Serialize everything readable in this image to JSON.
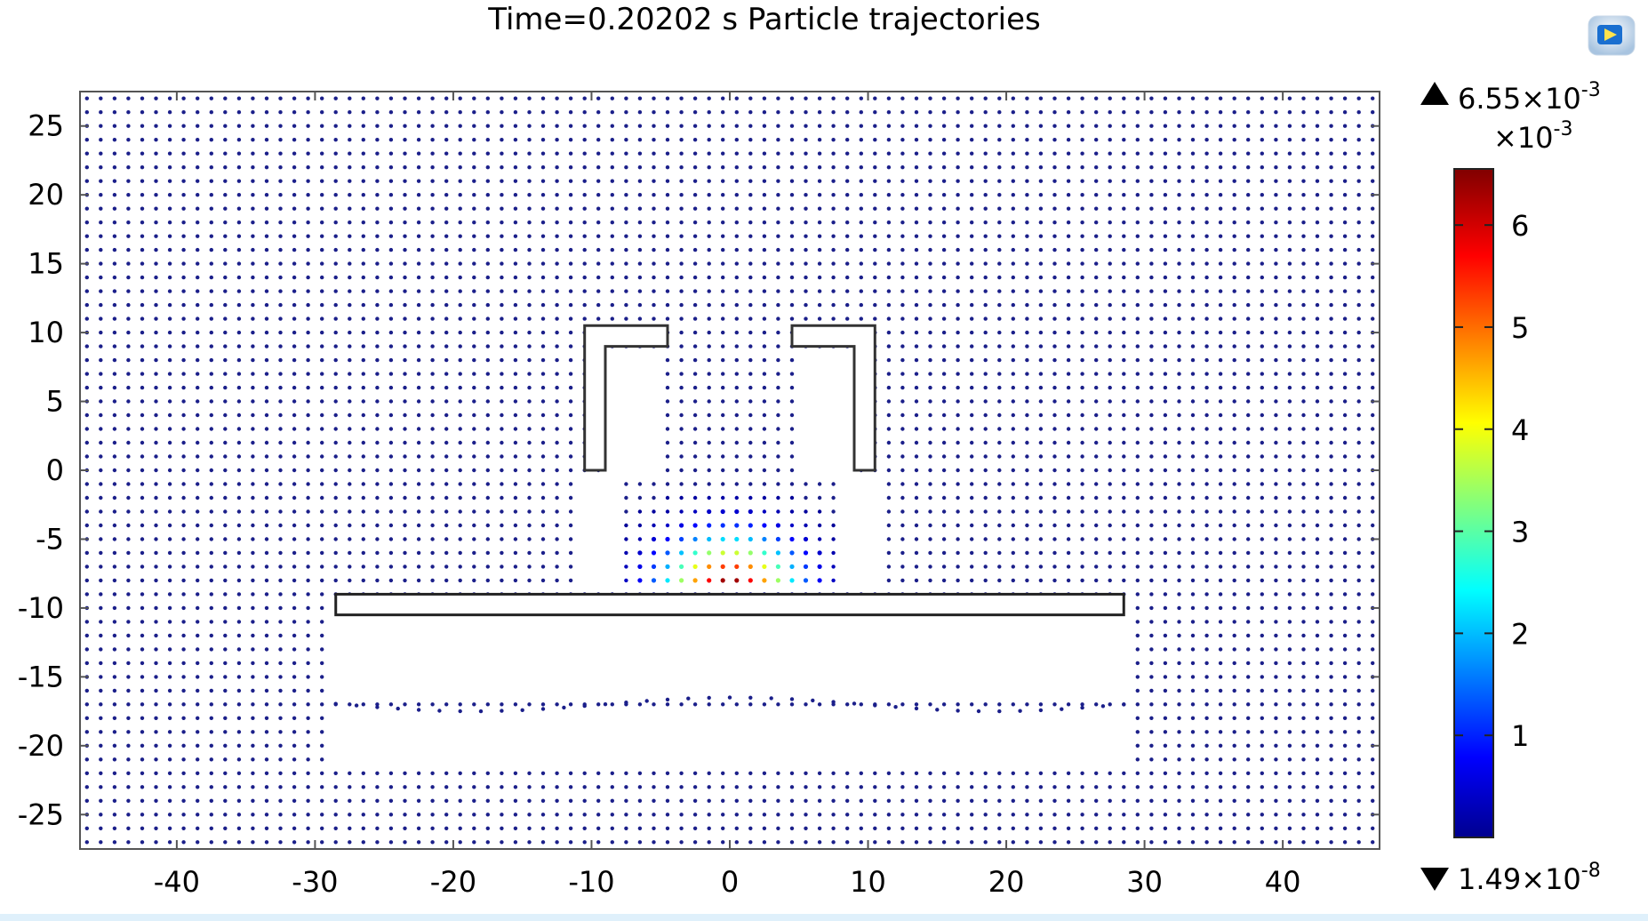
{
  "title": "Time=0.20202 s  Particle trajectories",
  "logo_icon": "comsol-graphics-logo-icon",
  "chart_data": {
    "type": "scatter",
    "title": "Time=0.20202 s  Particle trajectories",
    "xlim": [
      -47,
      47
    ],
    "ylim": [
      -27.5,
      27.5
    ],
    "x_ticks": [
      -40,
      -30,
      -20,
      -10,
      0,
      10,
      20,
      30,
      40
    ],
    "y_ticks": [
      25,
      20,
      15,
      10,
      5,
      0,
      -5,
      -10,
      -15,
      -20,
      -25
    ],
    "grid": false,
    "geometry": {
      "left_bracket": [
        [
          -10.5,
          10.5
        ],
        [
          -4.5,
          10.5
        ],
        [
          -4.5,
          9.0
        ],
        [
          -9.0,
          9.0
        ],
        [
          -9.0,
          0.0
        ],
        [
          -10.5,
          0.0
        ]
      ],
      "right_bracket": [
        [
          10.5,
          10.5
        ],
        [
          4.5,
          10.5
        ],
        [
          4.5,
          9.0
        ],
        [
          9.0,
          9.0
        ],
        [
          9.0,
          0.0
        ],
        [
          10.5,
          0.0
        ]
      ],
      "plate": {
        "x": [
          -28.5,
          28.5
        ],
        "y": [
          -10.5,
          -9.0
        ]
      }
    },
    "colorbar": {
      "max_label": "6.55×10",
      "max_exp": "-3",
      "scale_label": "×10",
      "scale_exp": "-3",
      "min_label": "1.49×10",
      "min_exp": "-8",
      "ticks": [
        1,
        2,
        3,
        4,
        5,
        6
      ],
      "tick_labels": [
        "1",
        "2",
        "3",
        "4",
        "5",
        "6"
      ],
      "range": [
        1.49e-08,
        6.55
      ],
      "colormap": [
        "#00008f",
        "#0000ff",
        "#00ffff",
        "#ffff00",
        "#ff0000",
        "#800000"
      ]
    },
    "particle_grid_spacing": 1.0,
    "hot_spot": {
      "x": 0,
      "y": -8.5,
      "peak": 6.55
    }
  }
}
